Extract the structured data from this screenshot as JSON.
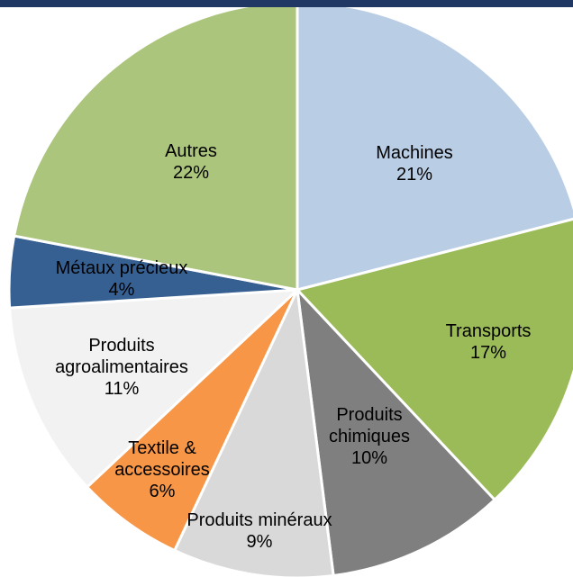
{
  "chart_data": {
    "type": "pie",
    "categories": [
      "Machines",
      "Transports",
      "Produits chimiques",
      "Produits minéraux",
      "Textile & accessoires",
      "Produits agroalimentaires",
      "Métaux précieux",
      "Autres"
    ],
    "values": [
      21,
      17,
      10,
      9,
      6,
      11,
      4,
      22
    ],
    "value_labels": [
      "21%",
      "17%",
      "10%",
      "9%",
      "6%",
      "11%",
      "4%",
      "22%"
    ],
    "colors": [
      "#b9cde5",
      "#9bbb59",
      "#7f7f7f",
      "#d9d9d9",
      "#f79646",
      "#f2f2f2",
      "#376092",
      "#abc57c"
    ]
  }
}
